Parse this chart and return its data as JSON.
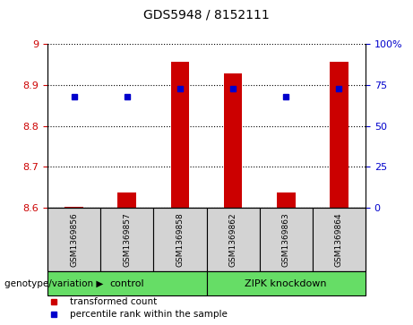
{
  "title": "GDS5948 / 8152111",
  "samples": [
    "GSM1369856",
    "GSM1369857",
    "GSM1369858",
    "GSM1369862",
    "GSM1369863",
    "GSM1369864"
  ],
  "transformed_counts": [
    8.602,
    8.638,
    8.957,
    8.928,
    8.638,
    8.957
  ],
  "percentile_ranks": [
    68,
    68,
    73,
    73,
    68,
    73
  ],
  "ylim_left": [
    8.6,
    9.0
  ],
  "ylim_right": [
    0,
    100
  ],
  "yticks_left": [
    8.6,
    8.7,
    8.8,
    8.9,
    9.0
  ],
  "yticks_left_labels": [
    "8.6",
    "8.7",
    "8.8",
    "8.9",
    "9"
  ],
  "yticks_right": [
    0,
    25,
    50,
    75,
    100
  ],
  "yticks_right_labels": [
    "0",
    "25",
    "50",
    "75",
    "100%"
  ],
  "bar_color": "#cc0000",
  "dot_color": "#0000cc",
  "bar_base": 8.6,
  "group_label": "genotype/variation",
  "legend_items": [
    "transformed count",
    "percentile rank within the sample"
  ],
  "tick_color_left": "#cc0000",
  "tick_color_right": "#0000cc",
  "background_color": "#ffffff",
  "xlabel_area_color": "#d3d3d3",
  "group_area_color": "#66dd66"
}
